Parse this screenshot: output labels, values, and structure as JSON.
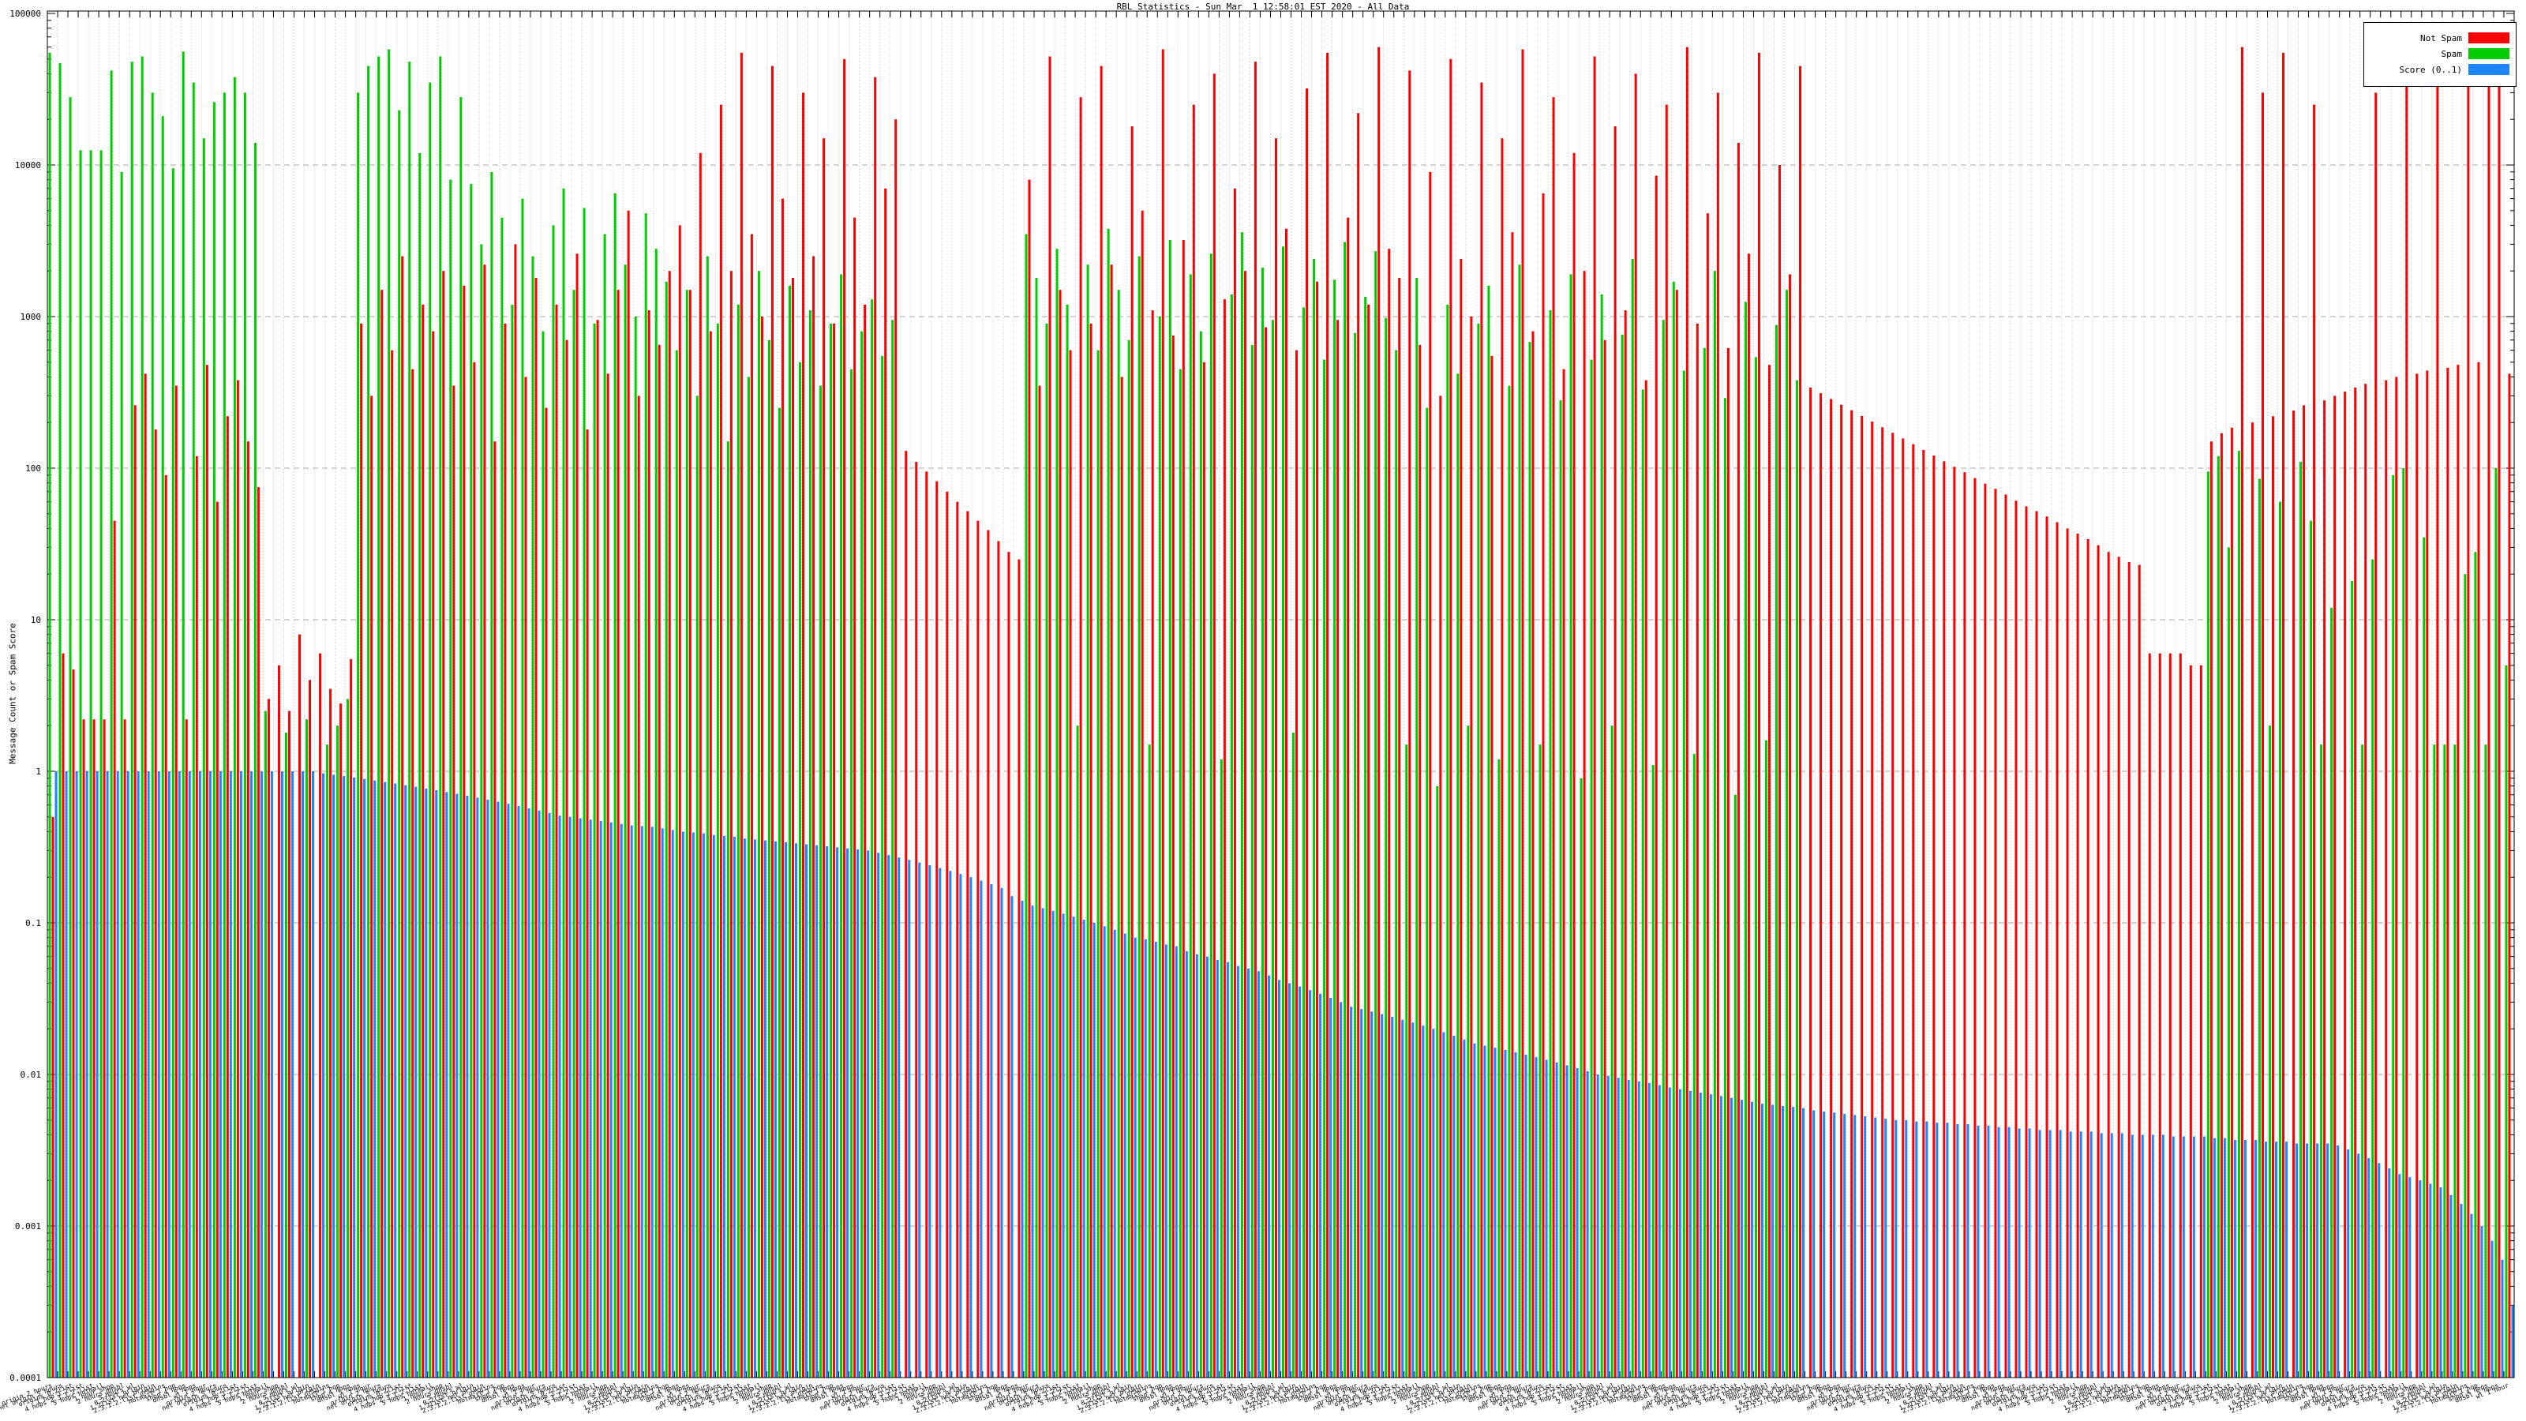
{
  "title": "RBL Statistics - Sun Mar  1 12:58:01 EST 2020 - All Data",
  "y_axis": {
    "label": "Message Count or Spam Score",
    "ticks": [
      {
        "label": "100000",
        "value": 100000
      },
      {
        "label": "10000",
        "value": 10000
      },
      {
        "label": "1000",
        "value": 1000
      },
      {
        "label": "100",
        "value": 100
      },
      {
        "label": "10",
        "value": 10
      },
      {
        "label": "1",
        "value": 1
      },
      {
        "label": "0.1",
        "value": 0.1
      },
      {
        "label": "0.01",
        "value": 0.01
      },
      {
        "label": "0.001",
        "value": 0.001
      },
      {
        "label": "0.0001",
        "value": 0.0001
      }
    ]
  },
  "legend": {
    "items": [
      {
        "label": "Not Spam",
        "color": "#ff0000"
      },
      {
        "label": "Spam",
        "color": "#00cc00"
      },
      {
        "label": "Score (0..1)",
        "color": "#1e86ff"
      }
    ]
  },
  "x_axis": {
    "readable_fragments": [
      "origin",
      "net origin",
      "origins",
      "1 hop",
      "4 hops",
      "5 hops",
      "1 hour",
      "2 hours",
      "5 hours",
      "0.2list",
      "1.2list",
      "2.3.1.2.list",
      "hotmail",
      "shop",
      "dnsbl",
      "wl"
    ]
  },
  "chart_data": {
    "type": "bar",
    "title": "RBL Statistics - Sun Mar  1 12:58:01 EST 2020 - All Data",
    "ylabel": "Message Count or Spam Score",
    "y_scale": "log",
    "ylim": [
      0.0001,
      100000
    ],
    "grid": true,
    "legend_position": "top-right",
    "n_categories": 240,
    "series": [
      {
        "name": "Not Spam",
        "color": "#ff0000",
        "values": [
          0.5,
          6,
          4.7,
          2.2,
          2.2,
          2.2,
          45,
          2.2,
          260,
          420,
          180,
          90,
          350,
          2.2,
          120,
          480,
          60,
          220,
          380,
          150,
          75,
          3,
          5,
          2.5,
          8,
          4,
          6,
          3.5,
          2.8,
          5.5,
          900,
          300,
          1500,
          600,
          2500,
          450,
          1200,
          800,
          2000,
          350,
          1600,
          500,
          2200,
          150,
          900,
          3000,
          400,
          1800,
          250,
          1200,
          700,
          2600,
          180,
          950,
          420,
          1500,
          5000,
          300,
          1100,
          650,
          2000,
          4000,
          1500,
          12000,
          800,
          25000,
          2000,
          55000,
          3500,
          1000,
          45000,
          6000,
          1800,
          30000,
          2500,
          15000,
          900,
          50000,
          4500,
          1200,
          38000,
          7000,
          20000,
          130,
          110,
          95,
          82,
          70,
          60,
          52,
          45,
          39,
          33,
          28,
          25,
          8000,
          350,
          52000,
          1500,
          600,
          28000,
          900,
          45000,
          2200,
          400,
          18000,
          5000,
          1100,
          58000,
          750,
          3200,
          25000,
          500,
          40000,
          1300,
          7000,
          2000,
          48000,
          850,
          15000,
          3800,
          600,
          32000,
          1700,
          55000,
          950,
          4500,
          22000,
          1200,
          60000,
          2800,
          1800,
          42000,
          650,
          9000,
          300,
          50000,
          2400,
          1000,
          35000,
          550,
          15000,
          3600,
          58000,
          800,
          6500,
          28000,
          450,
          12000,
          2000,
          52000,
          700,
          18000,
          1100,
          40000,
          380,
          8500,
          25000,
          1500,
          60000,
          900,
          4800,
          30000,
          620,
          14000,
          2600,
          55000,
          480,
          10000,
          1900,
          45000,
          340,
          312,
          286,
          262,
          241,
          221,
          203,
          186,
          171,
          157,
          144,
          132,
          121,
          111,
          102,
          94,
          86,
          79,
          73,
          67,
          61,
          56,
          52,
          48,
          44,
          40,
          37,
          34,
          31,
          28,
          26,
          24,
          23,
          6,
          6,
          6,
          6,
          5,
          5,
          150,
          170,
          185,
          60000,
          200,
          30000,
          220,
          55000,
          240,
          260,
          25000,
          280,
          300,
          320,
          340,
          360,
          30000,
          380,
          400,
          35000,
          420,
          440,
          55000,
          460,
          480,
          40000,
          500,
          60000,
          50000,
          420
        ]
      },
      {
        "name": "Spam",
        "color": "#00cc00",
        "values": [
          55000,
          47000,
          28000,
          12500,
          12500,
          12500,
          42000,
          9000,
          48000,
          52000,
          30000,
          21000,
          9500,
          56000,
          35000,
          15000,
          26000,
          30000,
          38000,
          30000,
          14000,
          2.5,
          0,
          1.8,
          0,
          2.2,
          0,
          1.5,
          2,
          3,
          30000,
          45000,
          52000,
          58000,
          23000,
          48000,
          12000,
          35000,
          52000,
          8000,
          28000,
          7500,
          3000,
          9000,
          4500,
          1200,
          6000,
          2500,
          800,
          4000,
          7000,
          1500,
          5200,
          900,
          3500,
          6500,
          2200,
          1000,
          4800,
          2800,
          1700,
          600,
          1500,
          300,
          2500,
          900,
          150,
          1200,
          400,
          2000,
          700,
          250,
          1600,
          500,
          1100,
          350,
          900,
          1900,
          450,
          800,
          1300,
          550,
          950,
          0,
          0,
          0,
          0,
          0,
          0,
          0,
          0,
          0,
          0,
          0,
          0,
          3500,
          1800,
          900,
          2800,
          1200,
          2,
          2200,
          600,
          3800,
          1500,
          700,
          2500,
          1.5,
          1000,
          3200,
          450,
          1900,
          800,
          2600,
          1.2,
          1400,
          3600,
          650,
          2100,
          950,
          2900,
          1.8,
          1150,
          2400,
          520,
          1750,
          3100,
          780,
          1350,
          2700,
          980,
          600,
          1.5,
          1800,
          250,
          0.8,
          1200,
          420,
          2,
          900,
          1600,
          1.2,
          350,
          2200,
          680,
          1.5,
          1100,
          280,
          1900,
          0.9,
          520,
          1400,
          2,
          760,
          2400,
          330,
          1.1,
          950,
          1700,
          440,
          1.3,
          620,
          2000,
          290,
          0.7,
          1250,
          540,
          1.6,
          880,
          1500,
          380,
          0,
          0,
          0,
          0,
          0,
          0,
          0,
          0,
          0,
          0,
          0,
          0,
          0,
          0,
          0,
          0,
          0,
          0,
          0,
          0,
          0,
          0,
          0,
          0,
          0,
          0,
          0,
          0,
          0,
          0,
          0,
          0,
          0,
          0,
          0,
          0,
          0,
          0,
          0,
          95,
          120,
          30,
          130,
          0,
          85,
          2,
          60,
          0,
          110,
          45,
          1.5,
          12,
          0,
          18,
          1.5,
          25,
          0,
          90,
          100,
          0,
          35,
          1.5,
          1.5,
          1.5,
          20,
          28,
          1.5,
          100,
          5
        ]
      },
      {
        "name": "Score (0..1)",
        "color": "#1e86ff",
        "values": [
          1,
          1,
          1,
          1,
          1,
          1,
          1,
          1,
          1,
          1,
          1,
          1,
          1,
          1,
          1,
          1,
          1,
          1,
          1,
          1,
          1,
          1,
          1,
          1,
          1,
          1,
          0.97,
          0.95,
          0.93,
          0.91,
          0.89,
          0.87,
          0.85,
          0.83,
          0.81,
          0.79,
          0.77,
          0.75,
          0.73,
          0.71,
          0.69,
          0.67,
          0.65,
          0.63,
          0.61,
          0.59,
          0.57,
          0.55,
          0.53,
          0.51,
          0.5,
          0.49,
          0.48,
          0.47,
          0.46,
          0.45,
          0.44,
          0.435,
          0.43,
          0.42,
          0.41,
          0.4,
          0.395,
          0.39,
          0.38,
          0.375,
          0.37,
          0.36,
          0.355,
          0.35,
          0.345,
          0.34,
          0.335,
          0.33,
          0.325,
          0.32,
          0.315,
          0.31,
          0.305,
          0.3,
          0.29,
          0.28,
          0.27,
          0.26,
          0.25,
          0.24,
          0.23,
          0.22,
          0.21,
          0.2,
          0.19,
          0.18,
          0.17,
          0.15,
          0.14,
          0.13,
          0.125,
          0.12,
          0.115,
          0.11,
          0.105,
          0.1,
          0.095,
          0.09,
          0.085,
          0.08,
          0.078,
          0.075,
          0.072,
          0.07,
          0.065,
          0.062,
          0.06,
          0.057,
          0.055,
          0.052,
          0.05,
          0.048,
          0.045,
          0.042,
          0.04,
          0.038,
          0.036,
          0.034,
          0.032,
          0.03,
          0.028,
          0.027,
          0.026,
          0.025,
          0.024,
          0.023,
          0.022,
          0.021,
          0.02,
          0.019,
          0.018,
          0.017,
          0.016,
          0.0155,
          0.015,
          0.0145,
          0.014,
          0.0135,
          0.013,
          0.0125,
          0.012,
          0.0115,
          0.011,
          0.0105,
          0.01,
          0.0098,
          0.0095,
          0.0092,
          0.009,
          0.0088,
          0.0085,
          0.0082,
          0.008,
          0.0078,
          0.0076,
          0.0074,
          0.0072,
          0.007,
          0.0068,
          0.0066,
          0.0064,
          0.0063,
          0.0062,
          0.0061,
          0.006,
          0.0058,
          0.0057,
          0.0056,
          0.0055,
          0.0054,
          0.0053,
          0.0052,
          0.0051,
          0.005,
          0.005,
          0.0049,
          0.0049,
          0.0048,
          0.0048,
          0.0047,
          0.0047,
          0.0046,
          0.0046,
          0.0045,
          0.0045,
          0.0044,
          0.0044,
          0.0043,
          0.0043,
          0.0043,
          0.0042,
          0.0042,
          0.0042,
          0.0041,
          0.0041,
          0.0041,
          0.004,
          0.004,
          0.004,
          0.004,
          0.0039,
          0.0039,
          0.0039,
          0.0039,
          0.0038,
          0.0038,
          0.0037,
          0.0037,
          0.0037,
          0.0036,
          0.0036,
          0.0036,
          0.0035,
          0.0035,
          0.0035,
          0.0035,
          0.0034,
          0.0032,
          0.003,
          0.0028,
          0.0026,
          0.0024,
          0.0022,
          0.0021,
          0.002,
          0.0019,
          0.0018,
          0.0016,
          0.0014,
          0.0012,
          0.001,
          0.0008,
          0.0006,
          0.0003
        ]
      }
    ]
  }
}
